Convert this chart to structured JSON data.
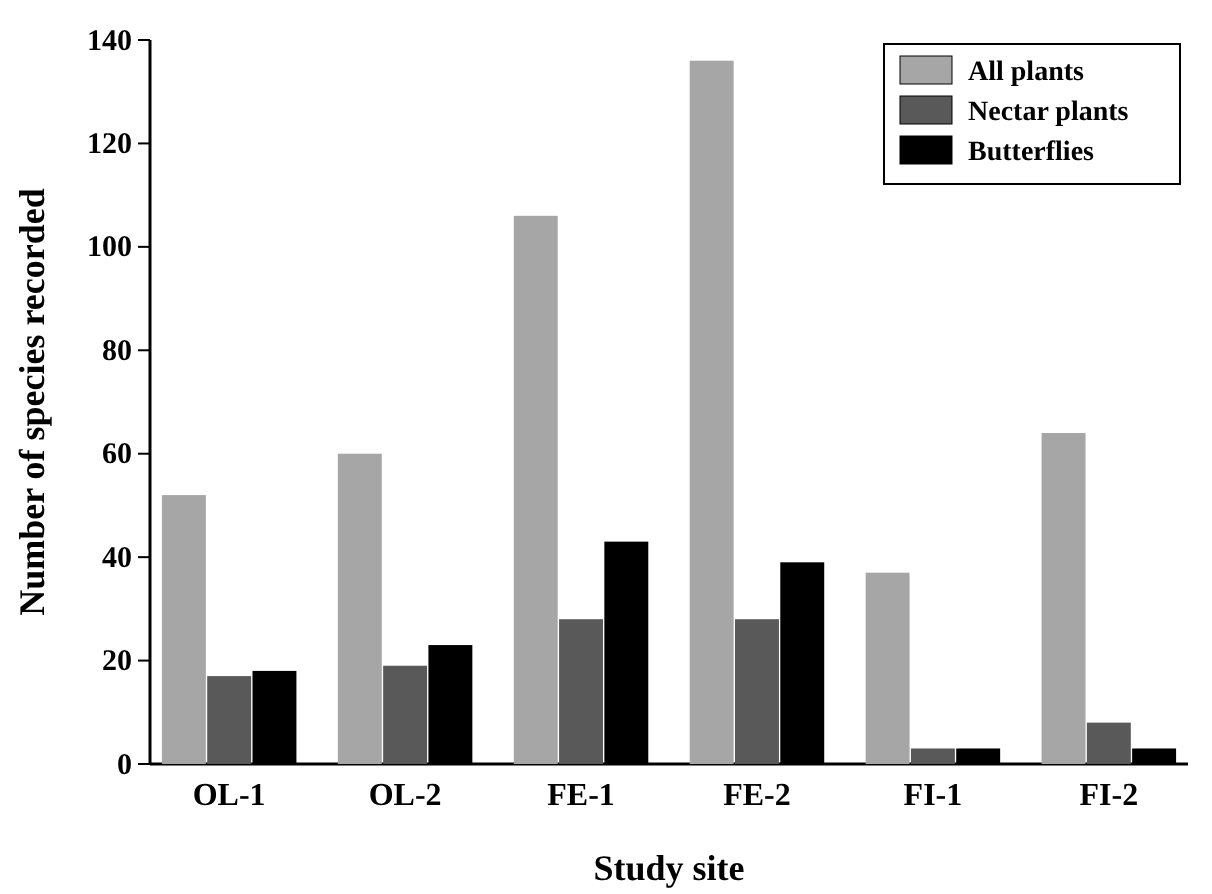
{
  "chart_data": {
    "type": "bar",
    "xlabel": "Study site",
    "ylabel": "Number of species recorded",
    "categories": [
      "OL-1",
      "OL-2",
      "FE-1",
      "FE-2",
      "FI-1",
      "FI-2"
    ],
    "series": [
      {
        "name": "All plants",
        "color": "#a6a6a6",
        "values": [
          52,
          60,
          106,
          136,
          37,
          64
        ]
      },
      {
        "name": "Nectar plants",
        "color": "#595959",
        "values": [
          17,
          19,
          28,
          28,
          3,
          8
        ]
      },
      {
        "name": "Butterflies",
        "color": "#000000",
        "values": [
          18,
          23,
          43,
          39,
          3,
          3
        ]
      }
    ],
    "ylim": [
      0,
      140
    ],
    "yticks": [
      0,
      20,
      40,
      60,
      80,
      100,
      120,
      140
    ],
    "grid": false,
    "legend": "top right"
  }
}
